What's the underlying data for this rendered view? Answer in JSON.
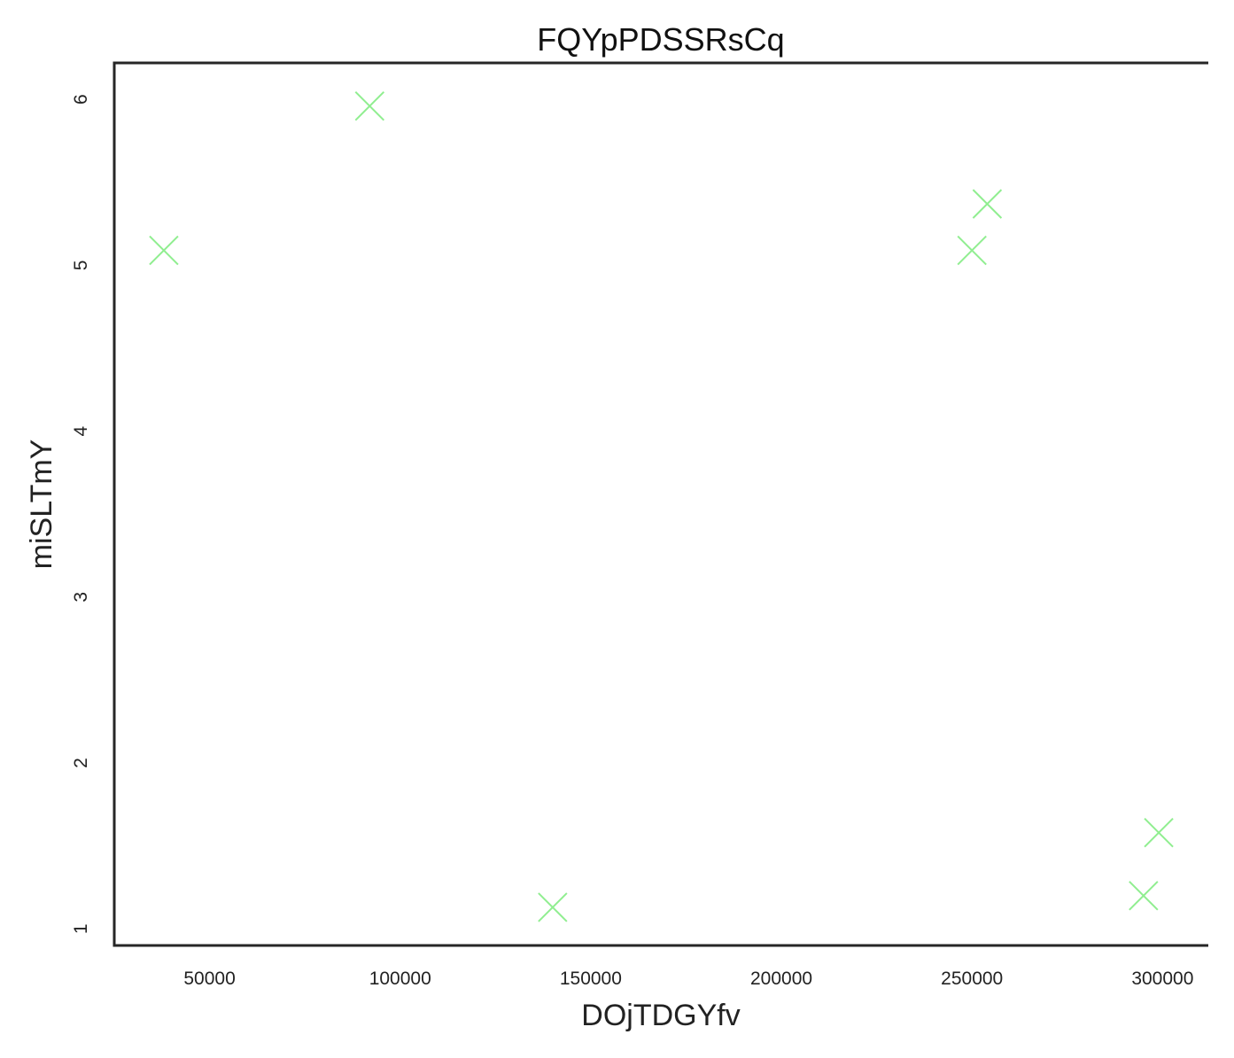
{
  "chart_data": {
    "type": "scatter",
    "title": "FQYpPDSSRsCq",
    "xlabel": "DOjTDGYfv",
    "ylabel": "miSLTmY",
    "xlim": [
      25000,
      312000
    ],
    "ylim": [
      0.9,
      6.22
    ],
    "xticks": [
      50000,
      100000,
      150000,
      200000,
      250000,
      300000
    ],
    "xtick_labels": [
      "50000",
      "100000",
      "150000",
      "200000",
      "250000",
      "300000"
    ],
    "yticks": [
      1,
      2,
      3,
      4,
      5,
      6
    ],
    "ytick_labels": [
      "1",
      "2",
      "3",
      "4",
      "5",
      "6"
    ],
    "grid": false,
    "marker": "x",
    "marker_color": "#90ee90",
    "points": [
      {
        "x": 38000,
        "y": 5.09
      },
      {
        "x": 92000,
        "y": 5.96
      },
      {
        "x": 140000,
        "y": 1.13
      },
      {
        "x": 250000,
        "y": 5.09
      },
      {
        "x": 254000,
        "y": 5.37
      },
      {
        "x": 295000,
        "y": 1.2
      },
      {
        "x": 299000,
        "y": 1.58
      }
    ]
  }
}
